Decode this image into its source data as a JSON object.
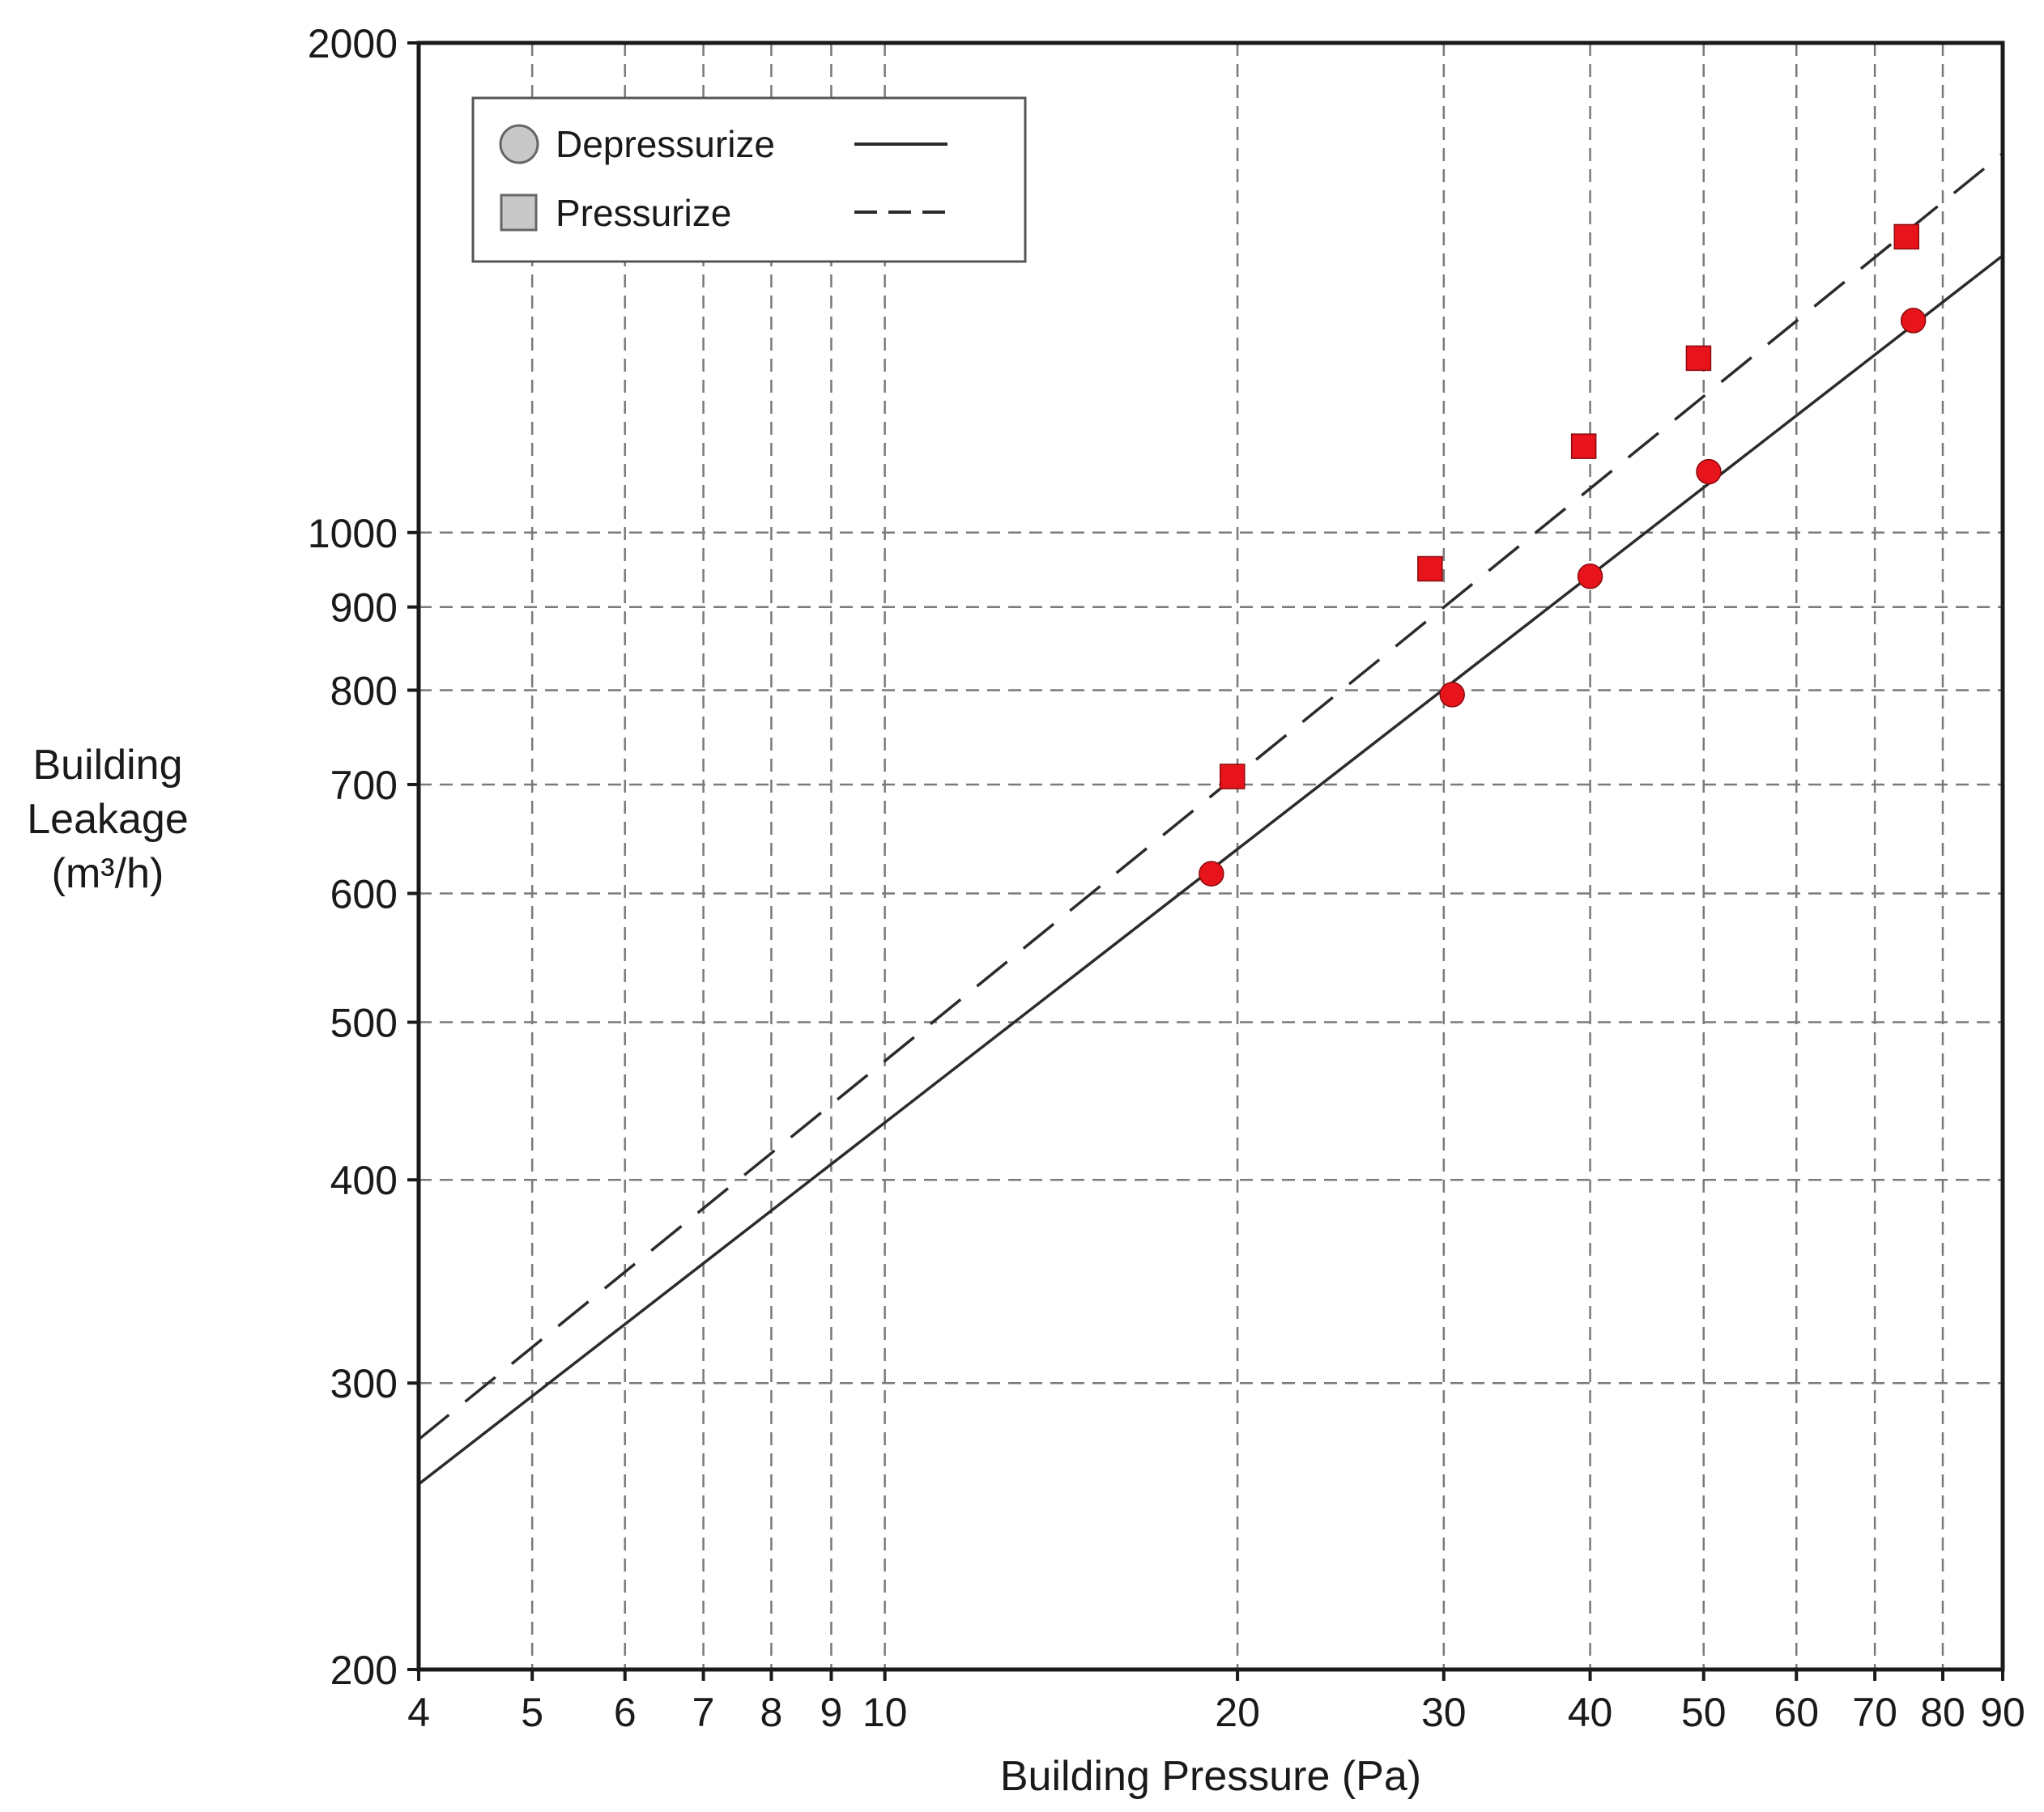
{
  "chart_data": {
    "type": "scatter",
    "xscale": "log",
    "yscale": "log",
    "xlim": [
      4,
      90
    ],
    "ylim": [
      200,
      2000
    ],
    "grid": true,
    "grid_style": "dashed",
    "legend_position": "top-left",
    "title": "",
    "xlabel": "Building Pressure (Pa)",
    "ylabel_lines": [
      "Building",
      "Leakage",
      "(m³/h)"
    ],
    "x_ticks": [
      4,
      5,
      6,
      7,
      8,
      9,
      10,
      20,
      30,
      40,
      50,
      60,
      70,
      80,
      90
    ],
    "x_tick_labels": [
      "4",
      "5",
      "6",
      "7",
      "8",
      "9",
      "10",
      "20",
      "30",
      "40",
      "50",
      "60",
      "70",
      "80",
      "90"
    ],
    "y_ticks": [
      200,
      300,
      400,
      500,
      600,
      700,
      800,
      900,
      1000,
      2000
    ],
    "y_tick_labels": [
      "200",
      "300",
      "400",
      "500",
      "600",
      "700",
      "800",
      "900",
      "1000",
      "2000"
    ],
    "marker_color": "#e8141b",
    "line_color": "#2b2b2b",
    "series": [
      {
        "name": "Depressurize",
        "marker": "circle",
        "line": "solid",
        "points": [
          {
            "x": 19,
            "y": 617
          },
          {
            "x": 30.5,
            "y": 795
          },
          {
            "x": 40,
            "y": 940
          },
          {
            "x": 50.5,
            "y": 1090
          },
          {
            "x": 75.5,
            "y": 1350
          }
        ],
        "fit": [
          [
            4,
            260
          ],
          [
            90,
            1480
          ]
        ]
      },
      {
        "name": "Pressurize",
        "marker": "square",
        "line": "dashed",
        "points": [
          {
            "x": 19.8,
            "y": 708
          },
          {
            "x": 29.2,
            "y": 950
          },
          {
            "x": 39.5,
            "y": 1130
          },
          {
            "x": 49.5,
            "y": 1280
          },
          {
            "x": 74.5,
            "y": 1520
          }
        ],
        "fit": [
          [
            4,
            277
          ],
          [
            90,
            1710
          ]
        ]
      }
    ]
  }
}
